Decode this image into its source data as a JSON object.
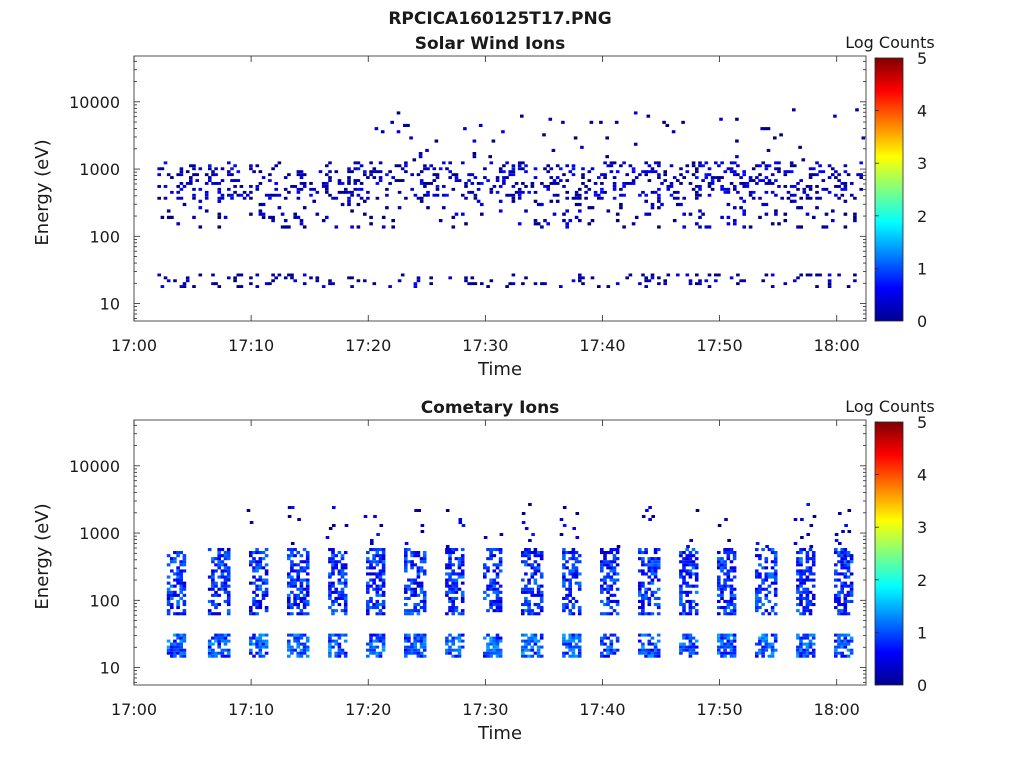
{
  "figure_title": "RPCICA160125T17.PNG",
  "colorbar_colors": [
    "#00008f",
    "#0000ff",
    "#0080ff",
    "#00ffff",
    "#80ff80",
    "#ffff00",
    "#ff8000",
    "#ff0000",
    "#800000"
  ],
  "chart_data": [
    {
      "type": "heatmap",
      "title": "Solar Wind Ions",
      "xlabel": "Time",
      "ylabel": "Energy (eV)",
      "x_ticks": [
        "17:00",
        "17:10",
        "17:20",
        "17:30",
        "17:40",
        "17:50",
        "18:00"
      ],
      "x_range_minutes": [
        0,
        62.5
      ],
      "y_scale": "log",
      "y_ticks": [
        "10",
        "100",
        "1000",
        "10000"
      ],
      "y_range": [
        5.5,
        48000
      ],
      "colorbar": {
        "title": "Log Counts",
        "range": [
          0,
          5
        ],
        "ticks": [
          "0",
          "1",
          "2",
          "3",
          "4",
          "5"
        ],
        "colormap": "jet"
      },
      "bands": [
        {
          "energy_range": [
            350,
            1300
          ],
          "log_counts": 0.3,
          "density": 0.22,
          "time_start": 2.0,
          "time_end": 62.2
        },
        {
          "energy_range": [
            130,
            350
          ],
          "log_counts": 0.2,
          "density": 0.09,
          "time_start": 2.0,
          "time_end": 62.2
        },
        {
          "energy_range": [
            17,
            28
          ],
          "log_counts": 0.2,
          "density": 0.12,
          "time_start": 2.0,
          "time_end": 62.2
        },
        {
          "energy_range": [
            1300,
            8000
          ],
          "log_counts": 0.1,
          "density": 0.02,
          "time_start": 20.0,
          "time_end": 62.2
        }
      ]
    },
    {
      "type": "heatmap",
      "title": "Cometary Ions",
      "xlabel": "Time",
      "ylabel": "Energy (eV)",
      "x_ticks": [
        "17:00",
        "17:10",
        "17:20",
        "17:30",
        "17:40",
        "17:50",
        "18:00"
      ],
      "x_range_minutes": [
        0,
        62.5
      ],
      "y_scale": "log",
      "y_ticks": [
        "10",
        "100",
        "1000",
        "10000"
      ],
      "y_range": [
        5.5,
        48000
      ],
      "colorbar": {
        "title": "Log Counts",
        "range": [
          0,
          5
        ],
        "ticks": [
          "0",
          "1",
          "2",
          "3",
          "4",
          "5"
        ],
        "colormap": "jet"
      },
      "bursts_period_minutes": 3.3,
      "burst_times_minutes": [
        2.8,
        6.5,
        9.8,
        13.2,
        16.5,
        19.8,
        23.2,
        26.5,
        29.8,
        33.2,
        36.5,
        39.8,
        43.2,
        46.5,
        49.8,
        53.2,
        56.5,
        59.8
      ],
      "bands": [
        {
          "energy_range": [
            60,
            600
          ],
          "log_counts": 0.8,
          "density": 0.55,
          "time_start": 2.8,
          "time_end": 62.2
        },
        {
          "energy_range": [
            14,
            32
          ],
          "log_counts": 1.0,
          "density": 0.65,
          "time_start": 2.8,
          "time_end": 62.2
        },
        {
          "energy_range": [
            600,
            2800
          ],
          "log_counts": 0.3,
          "density": 0.05,
          "time_start": 8.0,
          "time_end": 62.2
        }
      ]
    }
  ]
}
